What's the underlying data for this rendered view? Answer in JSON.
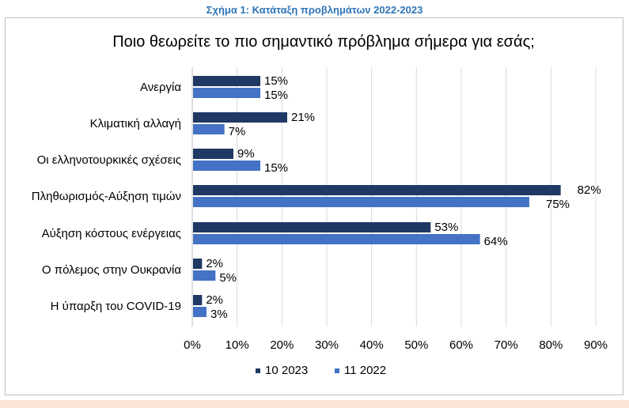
{
  "figure_caption": "Σχήμα 1: Κατάταξη προβλημάτων 2022-2023",
  "colors": {
    "caption": "#2e74b5",
    "series_2023": "#1f3864",
    "series_2022": "#4472c4",
    "text": "#000000",
    "grid": "#d9d9d9",
    "bottom_band": "#fbe5d6"
  },
  "chart_data": {
    "type": "bar",
    "orientation": "horizontal",
    "title": "Ποιο θεωρείτε το πιο σημαντικό πρόβλημα σήμερα για εσάς;",
    "categories": [
      "Ανεργία",
      "Κλιματική αλλαγή",
      "Οι ελληνοτουρκικές σχέσεις",
      "Πληθωρισμός-Αύξηση τιμών",
      "Αύξηση κόστους ενέργειας",
      "Ο πόλεμος στην Ουκρανία",
      "Η ύπαρξη του COVID-19"
    ],
    "series": [
      {
        "name": "10 2023",
        "values": [
          15,
          21,
          9,
          82,
          53,
          2,
          2
        ]
      },
      {
        "name": "11 2022",
        "values": [
          15,
          7,
          15,
          75,
          64,
          5,
          3
        ]
      }
    ],
    "value_labels": [
      [
        "15%",
        "21%",
        "9%",
        "82%",
        "53%",
        "2%",
        "2%"
      ],
      [
        "15%",
        "7%",
        "15%",
        "75%",
        "64%",
        "5%",
        "3%"
      ]
    ],
    "xlim": [
      0,
      90
    ],
    "xticks": [
      "0%",
      "10%",
      "20%",
      "30%",
      "40%",
      "50%",
      "60%",
      "70%",
      "80%",
      "90%"
    ],
    "xlabel": "",
    "ylabel": "",
    "grid": true,
    "legend_position": "bottom"
  }
}
